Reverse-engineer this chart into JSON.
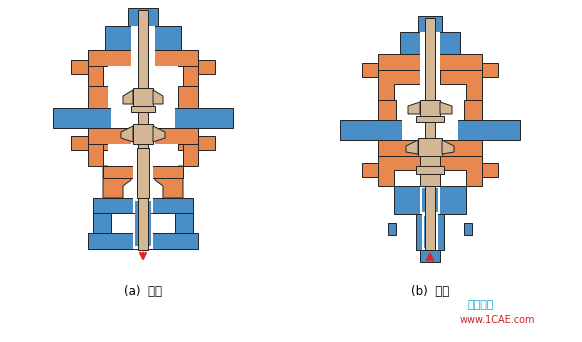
{
  "bg_color": "#ffffff",
  "orange_color": "#E8874E",
  "blue_color": "#4A8EC8",
  "tan_color": "#D4B896",
  "tan_dark": "#C4A880",
  "red_color": "#E82020",
  "dark_outline": "#222222",
  "label_left": "(a)  分流",
  "label_right": "(b)  合流",
  "watermark_line1": "仿真在线",
  "watermark_line2": "www.1CAE.com",
  "watermark_color": "#00AACC",
  "watermark_color2": "#CC2222",
  "fig_width": 5.82,
  "fig_height": 3.42,
  "dpi": 100
}
